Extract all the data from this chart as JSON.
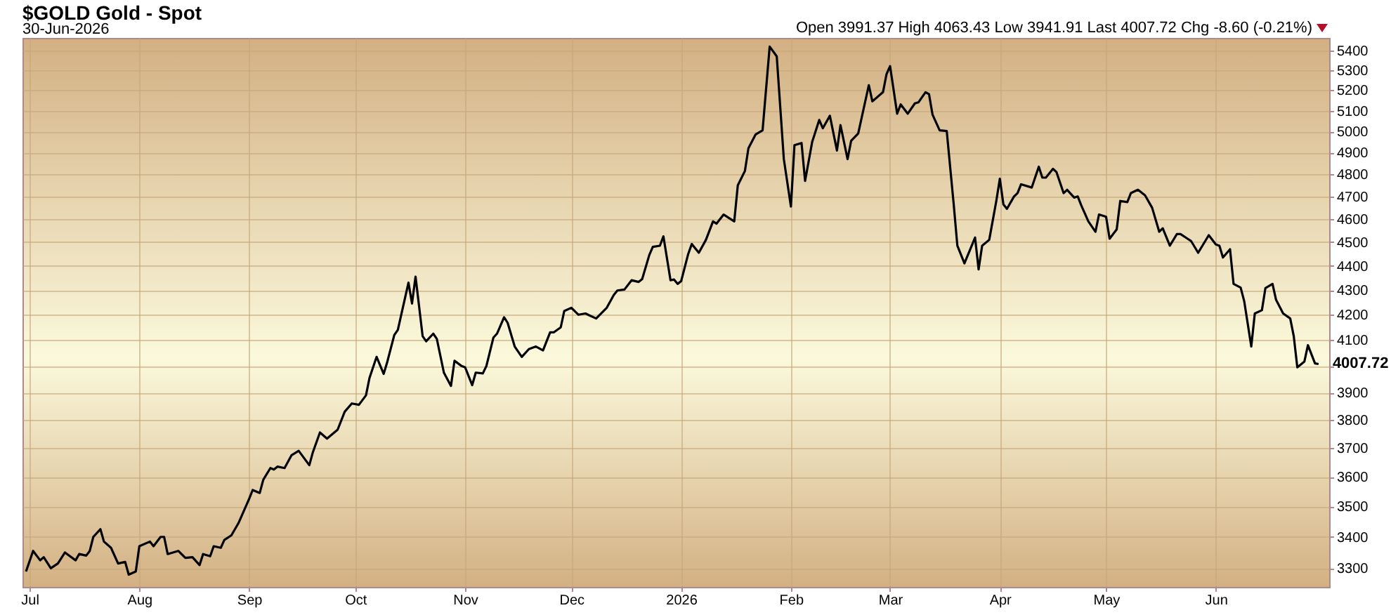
{
  "chart_data": {
    "type": "line",
    "title": "$GOLD Gold - Spot",
    "subtitle": "30-Jun-2026",
    "annotations": [
      "Open 3991.37 High 4063.43 Low 3941.91 Last 4007.72 Chg -8.60 (-0.21%)",
      {
        "text": "4007.72",
        "x": "2026-06-30",
        "y": 4007.72
      }
    ],
    "xlim": [
      "2025-06-29",
      "2026-07-03"
    ],
    "xticks": [
      {
        "value": "2025-07-01",
        "label": "Jul"
      },
      {
        "value": "2025-08-01",
        "label": "Aug"
      },
      {
        "value": "2025-09-01",
        "label": "Sep"
      },
      {
        "value": "2025-10-01",
        "label": "Oct"
      },
      {
        "value": "2025-11-01",
        "label": "Nov"
      },
      {
        "value": "2025-12-01",
        "label": "Dec"
      },
      {
        "value": "2026-01-01",
        "label": "2026"
      },
      {
        "value": "2026-02-01",
        "label": "Feb"
      },
      {
        "value": "2026-03-01",
        "label": "Mar"
      },
      {
        "value": "2026-04-01",
        "label": "Apr"
      },
      {
        "value": "2026-05-01",
        "label": "May"
      },
      {
        "value": "2026-06-01",
        "label": "Jun"
      }
    ],
    "ylim": [
      3242,
      5465
    ],
    "log": true,
    "yticks": [
      3300,
      3400,
      3500,
      3600,
      3700,
      3800,
      3900,
      {
        "value": 4000,
        "label": null
      },
      4100,
      4200,
      4300,
      4400,
      4500,
      4600,
      4700,
      4800,
      4900,
      5000,
      5100,
      5200,
      5300,
      5400
    ],
    "grid": true,
    "series": [
      {
        "color": "#000000",
        "x": [
          "2025-06-30",
          "2025-07-02",
          "2025-07-04",
          "2025-07-05",
          "2025-07-07",
          "2025-07-09",
          "2025-07-11",
          "2025-07-14",
          "2025-07-15",
          "2025-07-17",
          "2025-07-18",
          "2025-07-19",
          "2025-07-21",
          "2025-07-22",
          "2025-07-24",
          "2025-07-26",
          "2025-07-28",
          "2025-07-29",
          "2025-07-31",
          "2025-08-01",
          "2025-08-04",
          "2025-08-05",
          "2025-08-07",
          "2025-08-08",
          "2025-08-09",
          "2025-08-12",
          "2025-08-14",
          "2025-08-16",
          "2025-08-18",
          "2025-08-19",
          "2025-08-21",
          "2025-08-22",
          "2025-08-24",
          "2025-08-25",
          "2025-08-27",
          "2025-08-29",
          "2025-09-01",
          "2025-09-02",
          "2025-09-04",
          "2025-09-05",
          "2025-09-07",
          "2025-09-08",
          "2025-09-09",
          "2025-09-11",
          "2025-09-13",
          "2025-09-15",
          "2025-09-18",
          "2025-09-19",
          "2025-09-21",
          "2025-09-23",
          "2025-09-26",
          "2025-09-28",
          "2025-09-30",
          "2025-10-02",
          "2025-10-04",
          "2025-10-05",
          "2025-10-07",
          "2025-10-09",
          "2025-10-10",
          "2025-10-12",
          "2025-10-13",
          "2025-10-16",
          "2025-10-17",
          "2025-10-18",
          "2025-10-20",
          "2025-10-21",
          "2025-10-23",
          "2025-10-24",
          "2025-10-26",
          "2025-10-28",
          "2025-10-29",
          "2025-10-31",
          "2025-11-01",
          "2025-11-03",
          "2025-11-04",
          "2025-11-06",
          "2025-11-07",
          "2025-11-09",
          "2025-11-10",
          "2025-11-12",
          "2025-11-13",
          "2025-11-15",
          "2025-11-17",
          "2025-11-19",
          "2025-11-21",
          "2025-11-23",
          "2025-11-25",
          "2025-11-26",
          "2025-11-28",
          "2025-11-29",
          "2025-12-01",
          "2025-12-03",
          "2025-12-05",
          "2025-12-06",
          "2025-12-08",
          "2025-12-11",
          "2025-12-13",
          "2025-12-14",
          "2025-12-16",
          "2025-12-18",
          "2025-12-20",
          "2025-12-21",
          "2025-12-23",
          "2025-12-24",
          "2025-12-26",
          "2025-12-27",
          "2025-12-29",
          "2025-12-30",
          "2025-12-31",
          "2026-01-01",
          "2026-01-03",
          "2026-01-04",
          "2026-01-06",
          "2026-01-08",
          "2026-01-10",
          "2026-01-11",
          "2026-01-13",
          "2026-01-14",
          "2026-01-16",
          "2026-01-17",
          "2026-01-19",
          "2026-01-20",
          "2026-01-22",
          "2026-01-24",
          "2026-01-26",
          "2026-01-28",
          "2026-01-30",
          "2026-02-01",
          "2026-02-02",
          "2026-02-04",
          "2026-02-05",
          "2026-02-07",
          "2026-02-09",
          "2026-02-10",
          "2026-02-12",
          "2026-02-14",
          "2026-02-15",
          "2026-02-17",
          "2026-02-18",
          "2026-02-20",
          "2026-02-23",
          "2026-02-24",
          "2026-02-27",
          "2026-02-28",
          "2026-03-01",
          "2026-03-03",
          "2026-03-04",
          "2026-03-06",
          "2026-03-08",
          "2026-03-09",
          "2026-03-11",
          "2026-03-12",
          "2026-03-13",
          "2026-03-15",
          "2026-03-17",
          "2026-03-19",
          "2026-03-20",
          "2026-03-22",
          "2026-03-25",
          "2026-03-26",
          "2026-03-27",
          "2026-03-29",
          "2026-03-31",
          "2026-04-01",
          "2026-04-02",
          "2026-04-03",
          "2026-04-05",
          "2026-04-06",
          "2026-04-07",
          "2026-04-10",
          "2026-04-12",
          "2026-04-13",
          "2026-04-14",
          "2026-04-16",
          "2026-04-17",
          "2026-04-19",
          "2026-04-20",
          "2026-04-22",
          "2026-04-23",
          "2026-04-24",
          "2026-04-26",
          "2026-04-28",
          "2026-04-29",
          "2026-05-01",
          "2026-05-02",
          "2026-05-04",
          "2026-05-05",
          "2026-05-07",
          "2026-05-08",
          "2026-05-10",
          "2026-05-12",
          "2026-05-14",
          "2026-05-16",
          "2026-05-17",
          "2026-05-19",
          "2026-05-21",
          "2026-05-22",
          "2026-05-24",
          "2026-05-25",
          "2026-05-27",
          "2026-05-30",
          "2026-06-01",
          "2026-06-02",
          "2026-06-03",
          "2026-06-05",
          "2026-06-06",
          "2026-06-08",
          "2026-06-09",
          "2026-06-11",
          "2026-06-12",
          "2026-06-14",
          "2026-06-15",
          "2026-06-17",
          "2026-06-18",
          "2026-06-20",
          "2026-06-22",
          "2026-06-23",
          "2026-06-24",
          "2026-06-26",
          "2026-06-27",
          "2026-06-29",
          "2026-06-30"
        ],
        "values": [
          3290,
          3355,
          3325,
          3335,
          3300,
          3315,
          3350,
          3325,
          3345,
          3340,
          3355,
          3400,
          3425,
          3385,
          3365,
          3315,
          3320,
          3280,
          3290,
          3370,
          3385,
          3370,
          3400,
          3400,
          3345,
          3355,
          3333,
          3335,
          3310,
          3345,
          3338,
          3370,
          3365,
          3390,
          3405,
          3445,
          3525,
          3555,
          3545,
          3590,
          3630,
          3625,
          3635,
          3630,
          3675,
          3690,
          3640,
          3685,
          3755,
          3733,
          3765,
          3830,
          3860,
          3855,
          3890,
          3955,
          4035,
          3970,
          4015,
          4120,
          4140,
          4330,
          4245,
          4355,
          4115,
          4095,
          4125,
          4105,
          3975,
          3925,
          4020,
          4000,
          3995,
          3928,
          3975,
          3972,
          4000,
          4110,
          4125,
          4190,
          4168,
          4075,
          4035,
          4065,
          4075,
          4060,
          4130,
          4130,
          4150,
          4215,
          4228,
          4200,
          4205,
          4198,
          4185,
          4228,
          4280,
          4298,
          4302,
          4340,
          4333,
          4345,
          4445,
          4480,
          4485,
          4525,
          4340,
          4343,
          4325,
          4336,
          4450,
          4492,
          4455,
          4510,
          4590,
          4580,
          4620,
          4610,
          4590,
          4750,
          4815,
          4920,
          4985,
          5005,
          5420,
          5370,
          4870,
          4655,
          4935,
          4945,
          4770,
          4950,
          5055,
          5015,
          5075,
          4910,
          5030,
          4870,
          4955,
          4990,
          5225,
          5145,
          5190,
          5280,
          5320,
          5085,
          5130,
          5085,
          5135,
          5140,
          5190,
          5180,
          5080,
          5005,
          5002,
          4660,
          4485,
          4410,
          4520,
          4385,
          4485,
          4510,
          4680,
          4780,
          4665,
          4645,
          4700,
          4715,
          4755,
          4740,
          4835,
          4785,
          4785,
          4825,
          4810,
          4715,
          4730,
          4695,
          4700,
          4660,
          4590,
          4545,
          4620,
          4610,
          4515,
          4555,
          4680,
          4675,
          4715,
          4730,
          4705,
          4650,
          4545,
          4560,
          4485,
          4535,
          4535,
          4515,
          4505,
          4455,
          4530,
          4490,
          4485,
          4435,
          4470,
          4325,
          4310,
          4255,
          4075,
          4205,
          4218,
          4308,
          4325,
          4260,
          4205,
          4185,
          4115,
          3995,
          4017,
          4080,
          4010,
          4007.72
        ]
      }
    ]
  }
}
